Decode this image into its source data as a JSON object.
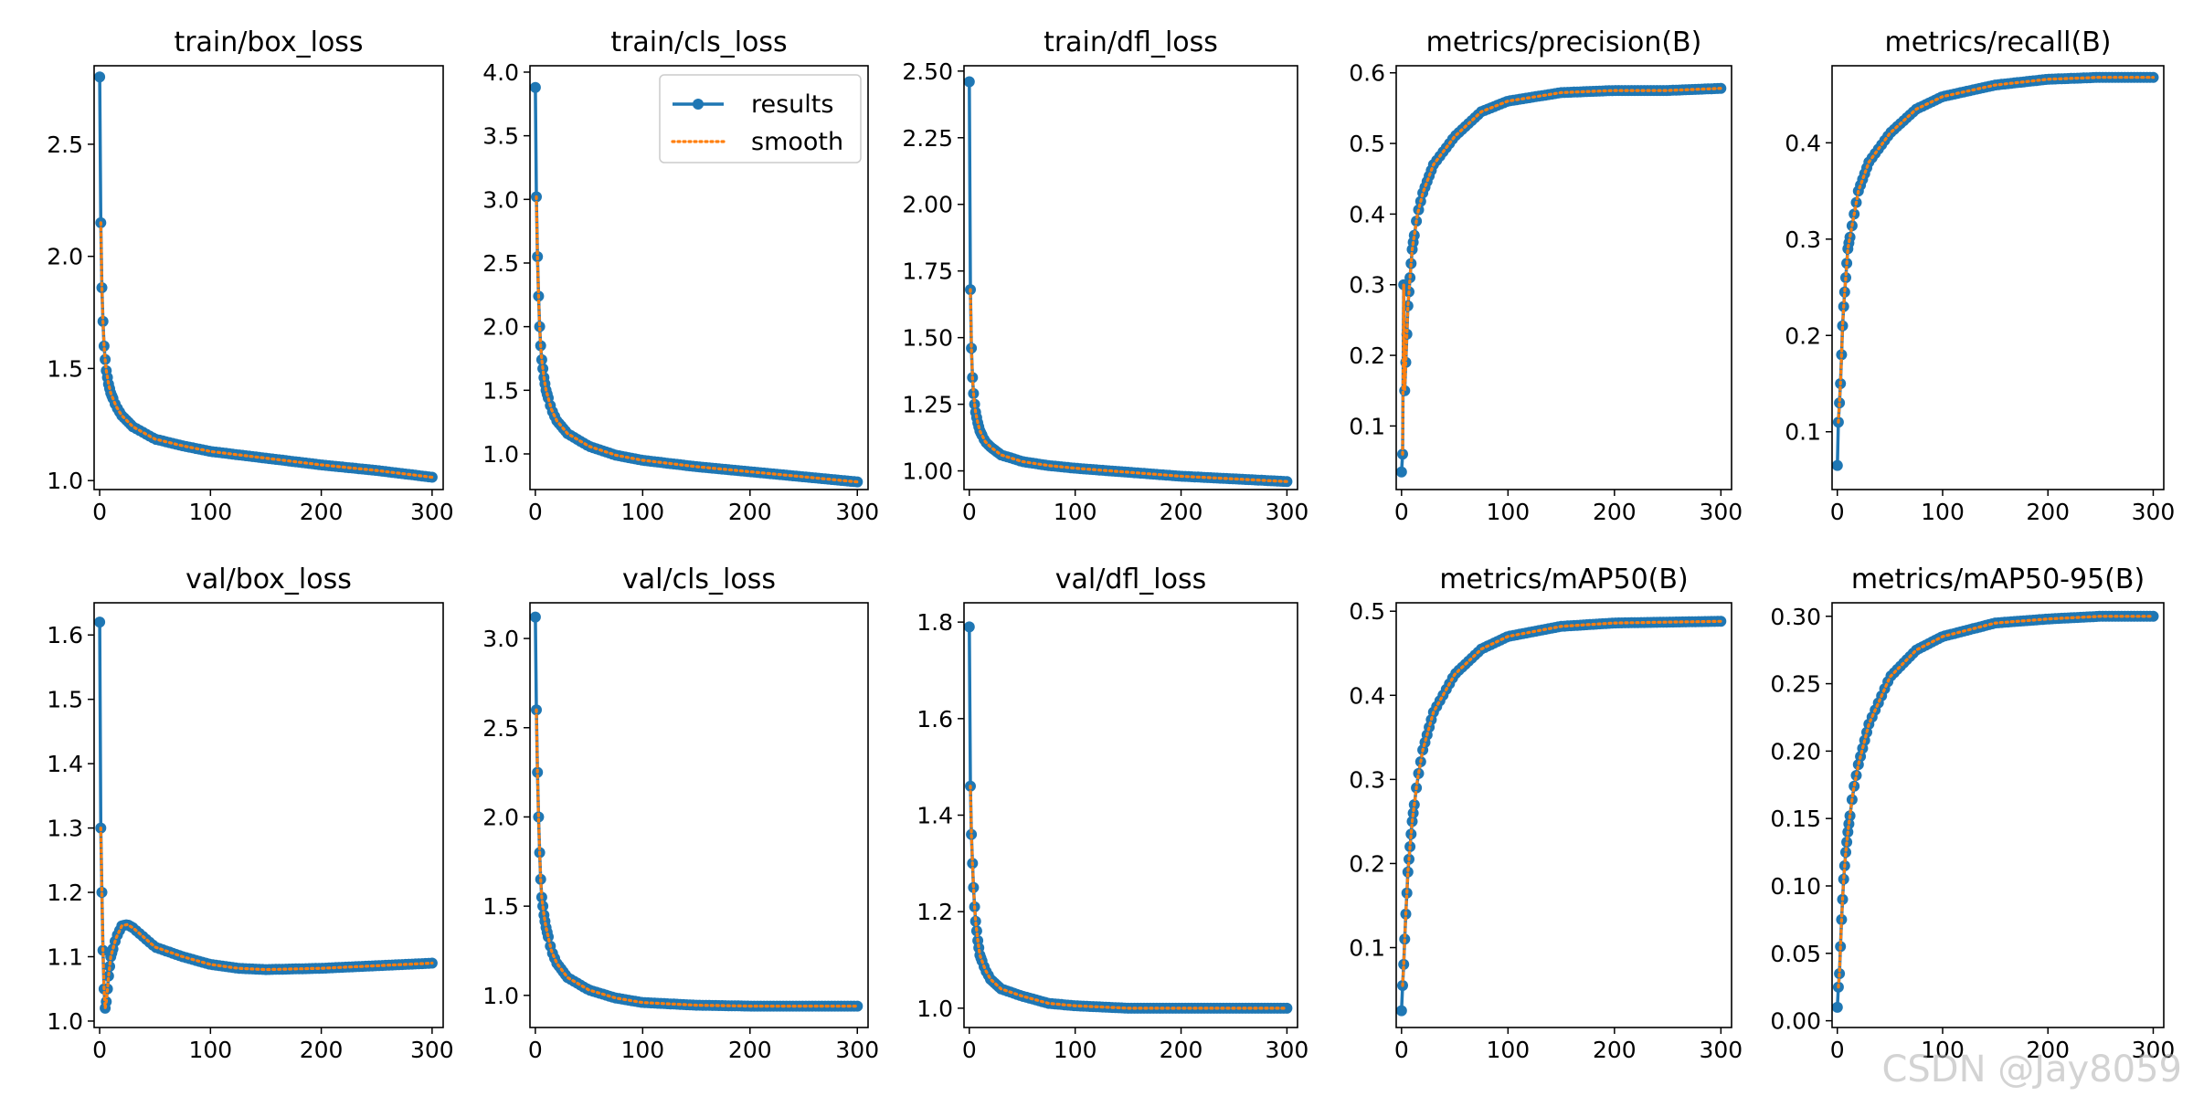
{
  "colors": {
    "results": "#1f77b4",
    "smooth": "#ff7f0e",
    "axes": "#000000"
  },
  "watermark": "CSDN @Jay8059",
  "legend": {
    "entries": [
      "results",
      "smooth"
    ],
    "location": "upper right",
    "panel": "train/cls_loss"
  },
  "chart_data": [
    {
      "type": "line",
      "title": "train/box_loss",
      "xlim": [
        -5,
        310
      ],
      "ylim": [
        0.96,
        2.85
      ],
      "xticks": [
        0,
        100,
        200,
        300
      ],
      "xtick_labels": [
        "0",
        "100",
        "200",
        "300"
      ],
      "yticks": [
        1.0,
        1.5,
        2.0,
        2.5
      ],
      "ytick_labels": [
        "1.0",
        "1.5",
        "2.0",
        "2.5"
      ],
      "anchors": [
        [
          0,
          2.8
        ],
        [
          1,
          2.15
        ],
        [
          2,
          1.86
        ],
        [
          3,
          1.71
        ],
        [
          4,
          1.6
        ],
        [
          5,
          1.54
        ],
        [
          6,
          1.49
        ],
        [
          8,
          1.43
        ],
        [
          10,
          1.39
        ],
        [
          15,
          1.33
        ],
        [
          20,
          1.29
        ],
        [
          30,
          1.24
        ],
        [
          50,
          1.185
        ],
        [
          75,
          1.155
        ],
        [
          100,
          1.13
        ],
        [
          150,
          1.1
        ],
        [
          200,
          1.07
        ],
        [
          250,
          1.045
        ],
        [
          300,
          1.015
        ]
      ],
      "series": [
        {
          "name": "results"
        },
        {
          "name": "smooth"
        }
      ]
    },
    {
      "type": "line",
      "title": "train/cls_loss",
      "xlim": [
        -5,
        310
      ],
      "ylim": [
        0.72,
        4.05
      ],
      "xticks": [
        0,
        100,
        200,
        300
      ],
      "xtick_labels": [
        "0",
        "100",
        "200",
        "300"
      ],
      "yticks": [
        1.0,
        1.5,
        2.0,
        2.5,
        3.0,
        3.5,
        4.0
      ],
      "ytick_labels": [
        "1.0",
        "1.5",
        "2.0",
        "2.5",
        "3.0",
        "3.5",
        "4.0"
      ],
      "anchors": [
        [
          0,
          3.88
        ],
        [
          1,
          3.02
        ],
        [
          2,
          2.55
        ],
        [
          3,
          2.24
        ],
        [
          4,
          2.0
        ],
        [
          5,
          1.85
        ],
        [
          6,
          1.74
        ],
        [
          8,
          1.6
        ],
        [
          10,
          1.5
        ],
        [
          15,
          1.35
        ],
        [
          20,
          1.26
        ],
        [
          30,
          1.16
        ],
        [
          50,
          1.06
        ],
        [
          75,
          0.99
        ],
        [
          100,
          0.95
        ],
        [
          150,
          0.9
        ],
        [
          200,
          0.86
        ],
        [
          250,
          0.82
        ],
        [
          300,
          0.78
        ]
      ],
      "series": [
        {
          "name": "results"
        },
        {
          "name": "smooth"
        }
      ]
    },
    {
      "type": "line",
      "title": "train/dfl_loss",
      "xlim": [
        -5,
        310
      ],
      "ylim": [
        0.93,
        2.52
      ],
      "xticks": [
        0,
        100,
        200,
        300
      ],
      "xtick_labels": [
        "0",
        "100",
        "200",
        "300"
      ],
      "yticks": [
        1.0,
        1.25,
        1.5,
        1.75,
        2.0,
        2.25,
        2.5
      ],
      "ytick_labels": [
        "1.00",
        "1.25",
        "1.50",
        "1.75",
        "2.00",
        "2.25",
        "2.50"
      ],
      "anchors": [
        [
          0,
          2.46
        ],
        [
          1,
          1.68
        ],
        [
          2,
          1.46
        ],
        [
          3,
          1.35
        ],
        [
          4,
          1.29
        ],
        [
          5,
          1.25
        ],
        [
          6,
          1.22
        ],
        [
          8,
          1.18
        ],
        [
          10,
          1.15
        ],
        [
          15,
          1.11
        ],
        [
          20,
          1.09
        ],
        [
          30,
          1.06
        ],
        [
          50,
          1.035
        ],
        [
          75,
          1.02
        ],
        [
          100,
          1.01
        ],
        [
          150,
          0.995
        ],
        [
          200,
          0.98
        ],
        [
          250,
          0.97
        ],
        [
          300,
          0.96
        ]
      ],
      "series": [
        {
          "name": "results"
        },
        {
          "name": "smooth"
        }
      ]
    },
    {
      "type": "line",
      "title": "metrics/precision(B)",
      "xlim": [
        -5,
        310
      ],
      "ylim": [
        0.01,
        0.61
      ],
      "xticks": [
        0,
        100,
        200,
        300
      ],
      "xtick_labels": [
        "0",
        "100",
        "200",
        "300"
      ],
      "yticks": [
        0.1,
        0.2,
        0.3,
        0.4,
        0.5,
        0.6
      ],
      "ytick_labels": [
        "0.1",
        "0.2",
        "0.3",
        "0.4",
        "0.5",
        "0.6"
      ],
      "anchors": [
        [
          0,
          0.035
        ],
        [
          1,
          0.06
        ],
        [
          2,
          0.3
        ],
        [
          3,
          0.15
        ],
        [
          4,
          0.19
        ],
        [
          5,
          0.23
        ],
        [
          6,
          0.27
        ],
        [
          8,
          0.31
        ],
        [
          10,
          0.35
        ],
        [
          15,
          0.4
        ],
        [
          20,
          0.43
        ],
        [
          30,
          0.47
        ],
        [
          50,
          0.51
        ],
        [
          75,
          0.545
        ],
        [
          100,
          0.56
        ],
        [
          150,
          0.572
        ],
        [
          200,
          0.575
        ],
        [
          250,
          0.575
        ],
        [
          300,
          0.578
        ]
      ],
      "series": [
        {
          "name": "results"
        },
        {
          "name": "smooth"
        }
      ]
    },
    {
      "type": "line",
      "title": "metrics/recall(B)",
      "xlim": [
        -5,
        310
      ],
      "ylim": [
        0.04,
        0.48
      ],
      "xticks": [
        0,
        100,
        200,
        300
      ],
      "xtick_labels": [
        "0",
        "100",
        "200",
        "300"
      ],
      "yticks": [
        0.1,
        0.2,
        0.3,
        0.4
      ],
      "ytick_labels": [
        "0.1",
        "0.2",
        "0.3",
        "0.4"
      ],
      "anchors": [
        [
          0,
          0.065
        ],
        [
          1,
          0.11
        ],
        [
          2,
          0.13
        ],
        [
          3,
          0.15
        ],
        [
          4,
          0.18
        ],
        [
          5,
          0.21
        ],
        [
          6,
          0.23
        ],
        [
          8,
          0.26
        ],
        [
          10,
          0.29
        ],
        [
          15,
          0.32
        ],
        [
          20,
          0.35
        ],
        [
          30,
          0.38
        ],
        [
          50,
          0.41
        ],
        [
          75,
          0.435
        ],
        [
          100,
          0.448
        ],
        [
          150,
          0.46
        ],
        [
          200,
          0.466
        ],
        [
          250,
          0.468
        ],
        [
          300,
          0.468
        ]
      ],
      "series": [
        {
          "name": "results"
        },
        {
          "name": "smooth"
        }
      ]
    },
    {
      "type": "line",
      "title": "val/box_loss",
      "xlim": [
        -5,
        310
      ],
      "ylim": [
        0.99,
        1.65
      ],
      "xticks": [
        0,
        100,
        200,
        300
      ],
      "xtick_labels": [
        "0",
        "100",
        "200",
        "300"
      ],
      "yticks": [
        1.0,
        1.1,
        1.2,
        1.3,
        1.4,
        1.5,
        1.6
      ],
      "ytick_labels": [
        "1.0",
        "1.1",
        "1.2",
        "1.3",
        "1.4",
        "1.5",
        "1.6"
      ],
      "anchors": [
        [
          0,
          1.62
        ],
        [
          1,
          1.3
        ],
        [
          2,
          1.2
        ],
        [
          3,
          1.11
        ],
        [
          4,
          1.05
        ],
        [
          5,
          1.02
        ],
        [
          6,
          1.03
        ],
        [
          8,
          1.07
        ],
        [
          10,
          1.1
        ],
        [
          15,
          1.13
        ],
        [
          20,
          1.148
        ],
        [
          25,
          1.15
        ],
        [
          30,
          1.145
        ],
        [
          40,
          1.13
        ],
        [
          50,
          1.115
        ],
        [
          75,
          1.1
        ],
        [
          100,
          1.088
        ],
        [
          125,
          1.082
        ],
        [
          150,
          1.08
        ],
        [
          200,
          1.082
        ],
        [
          250,
          1.086
        ],
        [
          300,
          1.09
        ]
      ],
      "series": [
        {
          "name": "results"
        },
        {
          "name": "smooth"
        }
      ]
    },
    {
      "type": "line",
      "title": "val/cls_loss",
      "xlim": [
        -5,
        310
      ],
      "ylim": [
        0.82,
        3.2
      ],
      "xticks": [
        0,
        100,
        200,
        300
      ],
      "xtick_labels": [
        "0",
        "100",
        "200",
        "300"
      ],
      "yticks": [
        1.0,
        1.5,
        2.0,
        2.5,
        3.0
      ],
      "ytick_labels": [
        "1.0",
        "1.5",
        "2.0",
        "2.5",
        "3.0"
      ],
      "anchors": [
        [
          0,
          3.12
        ],
        [
          1,
          2.6
        ],
        [
          2,
          2.25
        ],
        [
          3,
          2.0
        ],
        [
          4,
          1.8
        ],
        [
          5,
          1.65
        ],
        [
          6,
          1.55
        ],
        [
          8,
          1.45
        ],
        [
          10,
          1.38
        ],
        [
          15,
          1.25
        ],
        [
          20,
          1.18
        ],
        [
          30,
          1.1
        ],
        [
          50,
          1.03
        ],
        [
          75,
          0.985
        ],
        [
          100,
          0.96
        ],
        [
          150,
          0.945
        ],
        [
          200,
          0.94
        ],
        [
          250,
          0.94
        ],
        [
          300,
          0.94
        ]
      ],
      "series": [
        {
          "name": "results"
        },
        {
          "name": "smooth"
        }
      ]
    },
    {
      "type": "line",
      "title": "val/dfl_loss",
      "xlim": [
        -5,
        310
      ],
      "ylim": [
        0.96,
        1.84
      ],
      "xticks": [
        0,
        100,
        200,
        300
      ],
      "xtick_labels": [
        "0",
        "100",
        "200",
        "300"
      ],
      "yticks": [
        1.0,
        1.2,
        1.4,
        1.6,
        1.8
      ],
      "ytick_labels": [
        "1.0",
        "1.2",
        "1.4",
        "1.6",
        "1.8"
      ],
      "anchors": [
        [
          0,
          1.79
        ],
        [
          1,
          1.46
        ],
        [
          2,
          1.36
        ],
        [
          3,
          1.3
        ],
        [
          4,
          1.25
        ],
        [
          5,
          1.21
        ],
        [
          6,
          1.18
        ],
        [
          8,
          1.14
        ],
        [
          10,
          1.11
        ],
        [
          15,
          1.08
        ],
        [
          20,
          1.06
        ],
        [
          30,
          1.04
        ],
        [
          50,
          1.025
        ],
        [
          75,
          1.01
        ],
        [
          100,
          1.005
        ],
        [
          150,
          1.0
        ],
        [
          200,
          1.0
        ],
        [
          250,
          1.0
        ],
        [
          300,
          1.0
        ]
      ],
      "series": [
        {
          "name": "results"
        },
        {
          "name": "smooth"
        }
      ]
    },
    {
      "type": "line",
      "title": "metrics/mAP50(B)",
      "xlim": [
        -5,
        310
      ],
      "ylim": [
        0.005,
        0.51
      ],
      "xticks": [
        0,
        100,
        200,
        300
      ],
      "xtick_labels": [
        "0",
        "100",
        "200",
        "300"
      ],
      "yticks": [
        0.1,
        0.2,
        0.3,
        0.4,
        0.5
      ],
      "ytick_labels": [
        "0.1",
        "0.2",
        "0.3",
        "0.4",
        "0.5"
      ],
      "anchors": [
        [
          0,
          0.025
        ],
        [
          1,
          0.055
        ],
        [
          2,
          0.08
        ],
        [
          3,
          0.11
        ],
        [
          4,
          0.14
        ],
        [
          5,
          0.165
        ],
        [
          6,
          0.19
        ],
        [
          8,
          0.22
        ],
        [
          10,
          0.25
        ],
        [
          15,
          0.3
        ],
        [
          20,
          0.335
        ],
        [
          30,
          0.38
        ],
        [
          50,
          0.425
        ],
        [
          75,
          0.455
        ],
        [
          100,
          0.47
        ],
        [
          150,
          0.482
        ],
        [
          200,
          0.486
        ],
        [
          250,
          0.487
        ],
        [
          300,
          0.488
        ]
      ],
      "series": [
        {
          "name": "results"
        },
        {
          "name": "smooth"
        }
      ]
    },
    {
      "type": "line",
      "title": "metrics/mAP50-95(B)",
      "xlim": [
        -5,
        310
      ],
      "ylim": [
        -0.005,
        0.31
      ],
      "xticks": [
        0,
        100,
        200,
        300
      ],
      "xtick_labels": [
        "0",
        "100",
        "200",
        "300"
      ],
      "yticks": [
        0.0,
        0.05,
        0.1,
        0.15,
        0.2,
        0.25,
        0.3
      ],
      "ytick_labels": [
        "0.00",
        "0.05",
        "0.10",
        "0.15",
        "0.20",
        "0.25",
        "0.30"
      ],
      "anchors": [
        [
          0,
          0.01
        ],
        [
          1,
          0.025
        ],
        [
          2,
          0.035
        ],
        [
          3,
          0.055
        ],
        [
          4,
          0.075
        ],
        [
          5,
          0.09
        ],
        [
          6,
          0.105
        ],
        [
          8,
          0.125
        ],
        [
          10,
          0.14
        ],
        [
          15,
          0.17
        ],
        [
          20,
          0.19
        ],
        [
          30,
          0.22
        ],
        [
          50,
          0.255
        ],
        [
          75,
          0.275
        ],
        [
          100,
          0.285
        ],
        [
          150,
          0.295
        ],
        [
          200,
          0.298
        ],
        [
          250,
          0.3
        ],
        [
          300,
          0.3
        ]
      ],
      "series": [
        {
          "name": "results"
        },
        {
          "name": "smooth"
        }
      ]
    }
  ]
}
